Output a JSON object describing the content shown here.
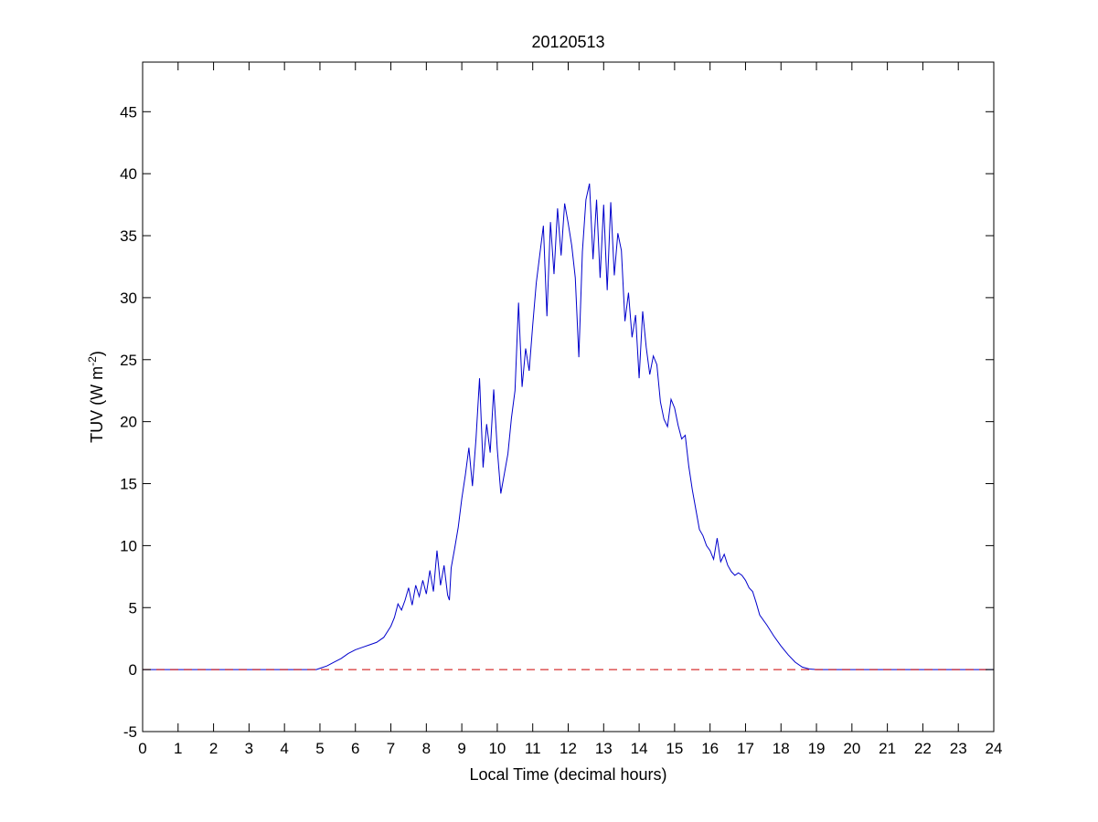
{
  "chart_data": {
    "type": "line",
    "title": "20120513",
    "xlabel": "Local Time (decimal hours)",
    "ylabel": {
      "prefix": "TUV (W m",
      "superscript": "-2",
      "suffix": ")"
    },
    "xlim": [
      0,
      24
    ],
    "ylim": [
      -5,
      49
    ],
    "x_ticks": [
      0,
      1,
      2,
      3,
      4,
      5,
      6,
      7,
      8,
      9,
      10,
      11,
      12,
      13,
      14,
      15,
      16,
      17,
      18,
      19,
      20,
      21,
      22,
      23,
      24
    ],
    "y_ticks": [
      -5,
      0,
      5,
      10,
      15,
      20,
      25,
      30,
      35,
      40,
      45
    ],
    "grid": false,
    "series": [
      {
        "color": "#0000cc",
        "style": "solid",
        "x": [
          0,
          4.9,
          5.0,
          5.2,
          5.4,
          5.6,
          5.8,
          6.0,
          6.2,
          6.4,
          6.6,
          6.8,
          7.0,
          7.1,
          7.2,
          7.3,
          7.4,
          7.5,
          7.6,
          7.7,
          7.8,
          7.9,
          8.0,
          8.1,
          8.2,
          8.3,
          8.4,
          8.5,
          8.6,
          8.65,
          8.7,
          8.8,
          8.9,
          9.0,
          9.1,
          9.2,
          9.3,
          9.4,
          9.5,
          9.6,
          9.7,
          9.8,
          9.9,
          10.0,
          10.1,
          10.2,
          10.3,
          10.4,
          10.5,
          10.6,
          10.7,
          10.8,
          10.9,
          11.0,
          11.1,
          11.2,
          11.3,
          11.4,
          11.5,
          11.6,
          11.7,
          11.8,
          11.9,
          12.0,
          12.1,
          12.2,
          12.3,
          12.4,
          12.5,
          12.6,
          12.7,
          12.8,
          12.9,
          13.0,
          13.1,
          13.2,
          13.3,
          13.4,
          13.5,
          13.6,
          13.7,
          13.8,
          13.9,
          14.0,
          14.1,
          14.2,
          14.3,
          14.4,
          14.5,
          14.6,
          14.7,
          14.8,
          14.9,
          15.0,
          15.1,
          15.2,
          15.3,
          15.4,
          15.5,
          15.6,
          15.7,
          15.8,
          15.9,
          16.0,
          16.1,
          16.2,
          16.3,
          16.4,
          16.5,
          16.6,
          16.7,
          16.8,
          16.9,
          17.0,
          17.1,
          17.2,
          17.3,
          17.4,
          17.6,
          17.8,
          18.0,
          18.2,
          18.4,
          18.6,
          18.8,
          19.0,
          24
        ],
        "y": [
          0,
          0,
          0.1,
          0.3,
          0.6,
          0.9,
          1.3,
          1.6,
          1.8,
          2.0,
          2.2,
          2.6,
          3.5,
          4.2,
          5.3,
          4.8,
          5.6,
          6.6,
          5.2,
          6.8,
          5.9,
          7.2,
          6.1,
          8.0,
          6.3,
          9.6,
          6.8,
          8.4,
          6.0,
          5.6,
          8.2,
          9.8,
          11.5,
          13.8,
          15.7,
          17.9,
          14.8,
          18.6,
          23.5,
          16.3,
          19.8,
          17.5,
          22.6,
          17.8,
          14.2,
          15.8,
          17.4,
          20.3,
          22.5,
          29.6,
          22.8,
          25.9,
          24.1,
          27.8,
          31.2,
          33.5,
          35.8,
          28.5,
          36.1,
          31.9,
          37.2,
          33.4,
          37.6,
          36.0,
          34.2,
          31.6,
          25.2,
          33.7,
          37.9,
          39.2,
          33.1,
          37.9,
          31.6,
          37.5,
          30.6,
          37.7,
          31.8,
          35.2,
          33.8,
          28.1,
          30.4,
          26.8,
          28.6,
          23.5,
          28.9,
          26.0,
          23.8,
          25.3,
          24.6,
          21.6,
          20.2,
          19.6,
          21.8,
          21.1,
          19.7,
          18.6,
          18.9,
          16.4,
          14.5,
          12.9,
          11.3,
          10.8,
          10.0,
          9.6,
          8.9,
          10.6,
          8.7,
          9.3,
          8.4,
          7.9,
          7.6,
          7.8,
          7.6,
          7.2,
          6.6,
          6.3,
          5.4,
          4.4,
          3.6,
          2.7,
          1.9,
          1.2,
          0.6,
          0.2,
          0.05,
          0,
          0
        ]
      },
      {
        "color": "#cc0000",
        "style": "dashed",
        "x": [
          0,
          24
        ],
        "y": [
          0,
          0
        ]
      }
    ]
  }
}
